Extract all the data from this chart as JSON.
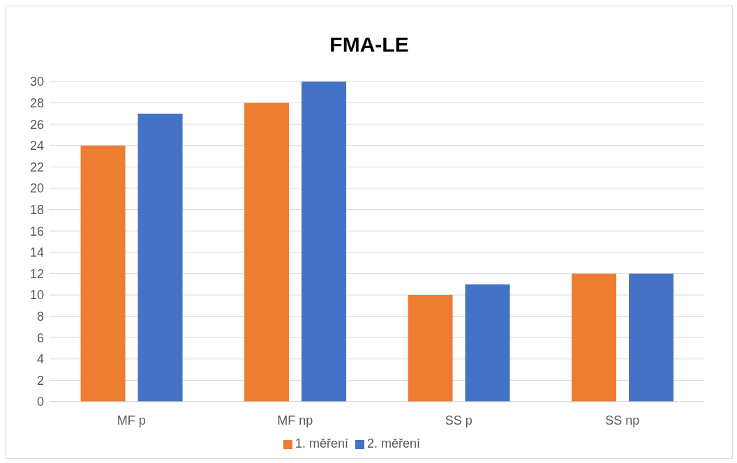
{
  "chart_data": {
    "type": "bar",
    "title": "FMA-LE",
    "categories": [
      "MF p",
      "MF np",
      "SS p",
      "SS np"
    ],
    "series": [
      {
        "name": "1. měření",
        "color": "#ed7d31",
        "values": [
          24,
          28,
          10,
          12
        ]
      },
      {
        "name": "2. měření",
        "color": "#4472c4",
        "values": [
          27,
          30,
          11,
          12
        ]
      }
    ],
    "ylim": [
      0,
      30
    ],
    "yticks": [
      0,
      2,
      4,
      6,
      8,
      10,
      12,
      14,
      16,
      18,
      20,
      22,
      24,
      26,
      28,
      30
    ],
    "grid": "y",
    "legend": "bottom"
  }
}
